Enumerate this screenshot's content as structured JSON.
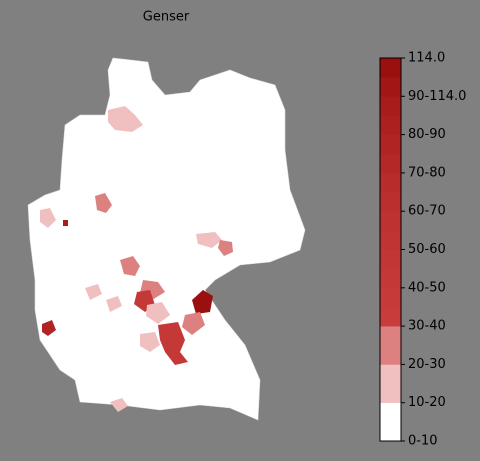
{
  "title": "Genser",
  "colorbar": {
    "labels": [
      "0-10",
      "10-20",
      "20-30",
      "30-40",
      "40-50",
      "50-60",
      "60-70",
      "70-80",
      "80-90",
      "90-114.0",
      "114.0"
    ],
    "colors": [
      "#ffffff",
      "#f0c0c0",
      "#dc8080",
      "#c83c3c",
      "#c63a3a",
      "#c43838",
      "#c23636",
      "#c03434",
      "#be3232",
      "#bc2f2f",
      "#b92c2c",
      "#b52828",
      "#b12424",
      "#ad2020",
      "#a81c1c",
      "#a21616",
      "#9a1010"
    ]
  }
}
